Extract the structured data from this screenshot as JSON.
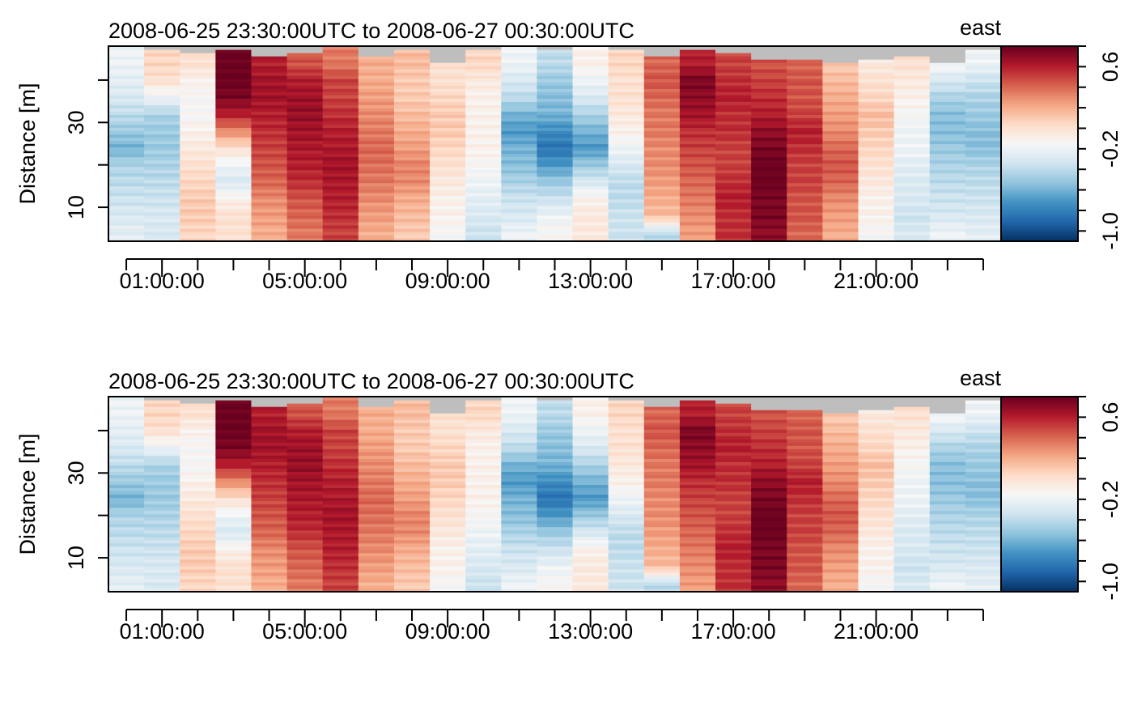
{
  "chart_data": [
    {
      "type": "heatmap",
      "title": "2008-06-25 23:30:00UTC to 2008-06-27 00:30:00UTC",
      "component_label": "east",
      "ylabel": "Distance [m]",
      "xlabel": "",
      "x_tick_labels": [
        "01:00:00",
        "05:00:00",
        "09:00:00",
        "13:00:00",
        "17:00:00",
        "21:00:00"
      ],
      "x_ticks_hours": [
        1,
        5,
        9,
        13,
        17,
        21
      ],
      "x_range_hours": [
        -0.5,
        24.5
      ],
      "y_tick_labels": [
        "10",
        "30"
      ],
      "y_ticks": [
        10,
        30
      ],
      "y_range": [
        2,
        48
      ],
      "colorbar": {
        "range": [
          -1.1,
          0.8
        ],
        "tick_labels": [
          "-1.0",
          "-0.2",
          "0.6"
        ],
        "ticks": [
          -1.0,
          -0.2,
          0.6
        ],
        "palette": [
          "#053061",
          "#2166ac",
          "#4393c3",
          "#92c5de",
          "#d1e5f0",
          "#f7f7f7",
          "#fddbc7",
          "#f4a582",
          "#d6604d",
          "#b2182b",
          "#67001f"
        ],
        "missing_color": "#bebebe"
      },
      "grid": false,
      "legend": "colorbar-right"
    },
    {
      "type": "heatmap",
      "title": "2008-06-25 23:30:00UTC to 2008-06-27 00:30:00UTC",
      "component_label": "east",
      "ylabel": "Distance [m]",
      "xlabel": "",
      "x_tick_labels": [
        "01:00:00",
        "05:00:00",
        "09:00:00",
        "13:00:00",
        "17:00:00",
        "21:00:00"
      ],
      "x_ticks_hours": [
        1,
        5,
        9,
        13,
        17,
        21
      ],
      "x_range_hours": [
        -0.5,
        24.5
      ],
      "y_tick_labels": [
        "10",
        "30"
      ],
      "y_ticks": [
        10,
        30
      ],
      "y_range": [
        2,
        48
      ],
      "colorbar": {
        "range": [
          -1.1,
          0.8
        ],
        "tick_labels": [
          "-1.0",
          "-0.2",
          "0.6"
        ],
        "ticks": [
          -1.0,
          -0.2,
          0.6
        ],
        "palette": [
          "#053061",
          "#2166ac",
          "#4393c3",
          "#92c5de",
          "#d1e5f0",
          "#f7f7f7",
          "#fddbc7",
          "#f4a582",
          "#d6604d",
          "#b2182b",
          "#67001f"
        ],
        "missing_color": "#bebebe"
      },
      "grid": false,
      "legend": "colorbar-right"
    }
  ],
  "profiles": {
    "hours": [
      0,
      1,
      2,
      3,
      4,
      5,
      6,
      7,
      8,
      9,
      10,
      11,
      12,
      13,
      14,
      15,
      16,
      17,
      18,
      19,
      20,
      21,
      22,
      23,
      24
    ],
    "bin_distances": [
      4,
      8,
      12,
      16,
      20,
      24,
      28,
      32,
      36,
      40,
      44
    ],
    "velocity_east": [
      [
        -0.25,
        -0.3,
        -0.35,
        -0.4,
        -0.45,
        -0.6,
        -0.5,
        -0.4,
        -0.3,
        -0.25,
        -0.2
      ],
      [
        -0.3,
        -0.3,
        -0.35,
        -0.4,
        -0.45,
        -0.5,
        -0.5,
        -0.45,
        -0.2,
        0.0,
        0.05
      ],
      [
        0.05,
        0.1,
        0.1,
        0.05,
        0.0,
        -0.05,
        -0.1,
        -0.15,
        -0.15,
        -0.1,
        0.0
      ],
      [
        0.0,
        0.0,
        -0.1,
        -0.3,
        -0.2,
        0.0,
        0.3,
        0.6,
        0.75,
        0.8,
        0.8
      ],
      [
        0.2,
        0.25,
        0.3,
        0.4,
        0.45,
        0.5,
        0.55,
        0.6,
        0.65,
        0.65,
        0.6
      ],
      [
        0.35,
        0.4,
        0.45,
        0.55,
        0.6,
        0.62,
        0.65,
        0.68,
        0.66,
        0.6,
        0.45
      ],
      [
        0.5,
        0.55,
        0.6,
        0.62,
        0.65,
        0.62,
        0.6,
        0.55,
        0.5,
        0.5,
        0.35
      ],
      [
        0.2,
        0.25,
        0.3,
        0.35,
        0.38,
        0.4,
        0.35,
        0.3,
        0.25,
        0.2,
        0.2
      ],
      [
        0.1,
        0.15,
        0.2,
        0.3,
        0.32,
        0.25,
        0.2,
        0.15,
        0.1,
        0.1,
        0.15
      ],
      [
        -0.15,
        -0.1,
        -0.1,
        -0.05,
        0.0,
        0.05,
        0.1,
        0.1,
        0.05,
        0.0,
        0.0
      ],
      [
        -0.35,
        -0.3,
        -0.25,
        -0.2,
        -0.15,
        -0.1,
        -0.1,
        -0.1,
        -0.1,
        -0.05,
        0.05
      ],
      [
        -0.2,
        -0.3,
        -0.35,
        -0.45,
        -0.55,
        -0.6,
        -0.7,
        -0.6,
        -0.4,
        -0.3,
        -0.2
      ],
      [
        -0.15,
        -0.2,
        -0.35,
        -0.5,
        -0.7,
        -0.85,
        -0.75,
        -0.6,
        -0.55,
        -0.5,
        -0.4
      ],
      [
        -0.05,
        -0.05,
        -0.1,
        -0.3,
        -0.5,
        -0.7,
        -0.6,
        -0.45,
        -0.3,
        -0.2,
        -0.1
      ],
      [
        -0.35,
        -0.35,
        -0.4,
        -0.4,
        -0.3,
        -0.2,
        -0.1,
        -0.05,
        0.0,
        0.0,
        0.05
      ],
      [
        -0.4,
        0.15,
        0.2,
        0.25,
        0.3,
        0.3,
        0.35,
        0.35,
        0.4,
        0.45,
        0.4
      ],
      [
        0.25,
        0.3,
        0.35,
        0.4,
        0.45,
        0.5,
        0.55,
        0.65,
        0.7,
        0.75,
        0.6
      ],
      [
        0.55,
        0.55,
        0.6,
        0.55,
        0.5,
        0.5,
        0.55,
        0.55,
        0.6,
        0.55,
        0.5
      ],
      [
        0.7,
        0.75,
        0.75,
        0.8,
        0.8,
        0.75,
        0.7,
        0.6,
        0.55,
        0.5,
        0.45
      ],
      [
        0.4,
        0.45,
        0.45,
        0.5,
        0.5,
        0.55,
        0.6,
        0.5,
        0.45,
        0.45,
        0.4
      ],
      [
        0.2,
        0.25,
        0.3,
        0.4,
        0.45,
        0.4,
        0.3,
        0.25,
        0.2,
        0.15,
        0.1
      ],
      [
        -0.15,
        -0.1,
        -0.1,
        -0.05,
        0.0,
        0.05,
        0.1,
        0.15,
        0.05,
        0.0,
        -0.05
      ],
      [
        -0.3,
        -0.35,
        -0.3,
        -0.3,
        -0.25,
        -0.2,
        -0.2,
        -0.15,
        -0.1,
        -0.05,
        0.0
      ],
      [
        -0.2,
        -0.3,
        -0.35,
        -0.4,
        -0.45,
        -0.5,
        -0.55,
        -0.55,
        -0.45,
        -0.3,
        -0.15
      ],
      [
        -0.25,
        -0.3,
        -0.35,
        -0.4,
        -0.45,
        -0.55,
        -0.55,
        -0.5,
        -0.45,
        -0.35,
        -0.2
      ]
    ],
    "valid_top_distance": [
      48,
      46.5,
      46,
      46.5,
      45.5,
      46,
      48,
      45,
      46.5,
      44,
      47,
      48,
      46.5,
      48,
      46.5,
      45.5,
      47,
      46,
      44.5,
      44.5,
      44,
      44.5,
      45,
      44,
      46.5
    ]
  }
}
